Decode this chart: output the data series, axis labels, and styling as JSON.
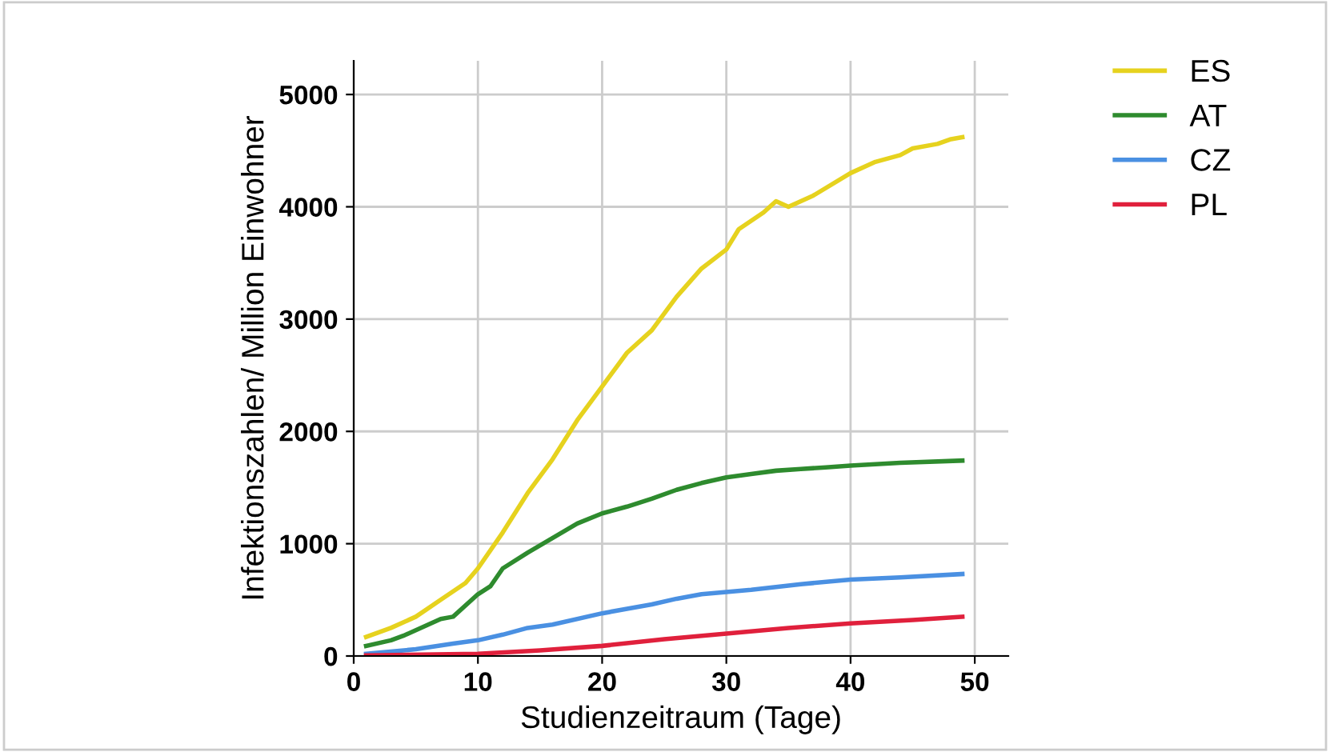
{
  "chart_data": {
    "type": "line",
    "xlabel": "Studienzeitraum (Tage)",
    "ylabel": "Infektionszahlen/ Million Einwohner",
    "xlim": [
      0,
      52.7
    ],
    "ylim": [
      0,
      5300
    ],
    "xticks": [
      0,
      10,
      20,
      30,
      40,
      50
    ],
    "yticks": [
      0,
      1000,
      2000,
      3000,
      4000,
      5000
    ],
    "grid": true,
    "legend": "top right",
    "marker": "none",
    "line_style": "solid",
    "series": [
      {
        "name": "ES",
        "color": "#e6d21e",
        "x": [
          1,
          3,
          5,
          7,
          9,
          10,
          12,
          14,
          16,
          18,
          20,
          22,
          24,
          26,
          28,
          30,
          31,
          33,
          34,
          35,
          37,
          40,
          42,
          44,
          45,
          47,
          48,
          49
        ],
        "values": [
          170,
          250,
          350,
          500,
          650,
          780,
          1100,
          1450,
          1750,
          2100,
          2400,
          2700,
          2900,
          3200,
          3450,
          3620,
          3800,
          3950,
          4050,
          4000,
          4100,
          4300,
          4400,
          4460,
          4520,
          4560,
          4600,
          4620
        ]
      },
      {
        "name": "AT",
        "color": "#2e8b2e",
        "x": [
          1,
          3,
          4,
          6,
          7,
          8,
          10,
          11,
          12,
          14,
          16,
          18,
          20,
          22,
          24,
          26,
          28,
          30,
          32,
          34,
          36,
          38,
          40,
          44,
          49
        ],
        "values": [
          90,
          140,
          180,
          280,
          330,
          350,
          550,
          620,
          780,
          920,
          1050,
          1180,
          1270,
          1330,
          1400,
          1480,
          1540,
          1590,
          1620,
          1650,
          1665,
          1680,
          1695,
          1720,
          1740
        ]
      },
      {
        "name": "CZ",
        "color": "#4a90e2",
        "x": [
          1,
          5,
          8,
          10,
          12,
          14,
          16,
          20,
          24,
          26,
          28,
          32,
          36,
          40,
          44,
          49
        ],
        "values": [
          20,
          60,
          110,
          140,
          190,
          250,
          280,
          380,
          460,
          510,
          550,
          590,
          640,
          680,
          700,
          730
        ]
      },
      {
        "name": "PL",
        "color": "#e0203c",
        "x": [
          1,
          10,
          15,
          20,
          25,
          30,
          35,
          40,
          45,
          49
        ],
        "values": [
          5,
          20,
          50,
          90,
          150,
          200,
          250,
          290,
          320,
          350
        ]
      }
    ]
  }
}
